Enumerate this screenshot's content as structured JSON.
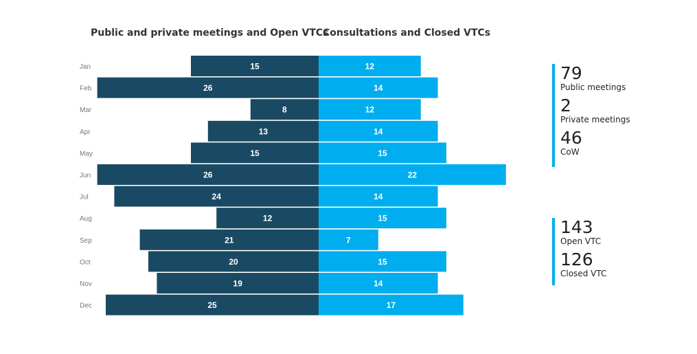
{
  "chart_data": {
    "type": "bar",
    "orientation": "horizontal-diverging",
    "categories": [
      "Jan",
      "Feb",
      "Mar",
      "Apr",
      "May",
      "Jun",
      "Jul",
      "Aug",
      "Sep",
      "Oct",
      "Nov",
      "Dec"
    ],
    "series": [
      {
        "name": "Public and private meetings and Open VTCs",
        "color": "#1a4a63",
        "side": "left",
        "values": [
          15,
          26,
          8,
          13,
          15,
          26,
          24,
          12,
          21,
          20,
          19,
          25
        ]
      },
      {
        "name": "Consultations and Closed VTCs",
        "color": "#00aeef",
        "side": "right",
        "values": [
          12,
          14,
          12,
          14,
          15,
          22,
          14,
          15,
          7,
          15,
          14,
          17
        ]
      }
    ],
    "xlim": [
      -26,
      22
    ],
    "grid": false,
    "data_labels": true
  },
  "stats": [
    {
      "items": [
        {
          "value": "79",
          "label": "Public meetings"
        },
        {
          "value": "2",
          "label": "Private meetings"
        },
        {
          "value": "46",
          "label": "CoW"
        }
      ]
    },
    {
      "items": [
        {
          "value": "143",
          "label": "Open VTC"
        },
        {
          "value": "126",
          "label": "Closed VTC"
        }
      ]
    }
  ]
}
